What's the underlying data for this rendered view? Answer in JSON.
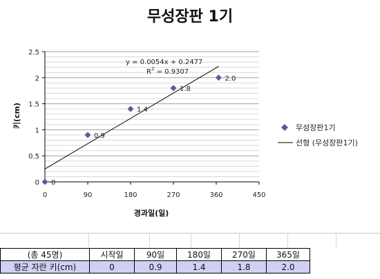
{
  "chart_data": {
    "type": "scatter",
    "title": "무성장판 1기",
    "xlabel": "경과일(일)",
    "ylabel": "키(cm)",
    "xlim": [
      0,
      450
    ],
    "ylim": [
      0,
      2.5
    ],
    "x_ticks": [
      "0",
      "90",
      "180",
      "270",
      "360",
      "450"
    ],
    "y_ticks": [
      "0",
      "0.5",
      "1",
      "1.5",
      "2",
      "2.5"
    ],
    "grid": true,
    "legend_position": "right",
    "series": [
      {
        "name": "무성장판1기",
        "marker": "diamond",
        "color": "#5b5b9a",
        "points": [
          {
            "x": 0,
            "y": 0,
            "label": "0"
          },
          {
            "x": 90,
            "y": 0.9,
            "label": "0.9"
          },
          {
            "x": 180,
            "y": 1.4,
            "label": "1.4"
          },
          {
            "x": 270,
            "y": 1.8,
            "label": "1.8"
          },
          {
            "x": 365,
            "y": 2.0,
            "label": "2.0"
          }
        ]
      }
    ],
    "trendline": {
      "name": "선형 (무성장판1기)",
      "slope": 0.0054,
      "intercept": 0.2477,
      "x_range": [
        0,
        365
      ],
      "equation": "y = 0.0054x + 0.2477",
      "r2_prefix": "R",
      "r2_sup": "2",
      "r2_value": " = 0.9307",
      "color": "#000000"
    }
  },
  "table": {
    "header": [
      "(총 45명)",
      "시작일",
      "90일",
      "180일",
      "270일",
      "365일"
    ],
    "row": [
      "평균 자란 키(cm)",
      "0",
      "0.9",
      "1.4",
      "1.8",
      "2.0"
    ]
  }
}
